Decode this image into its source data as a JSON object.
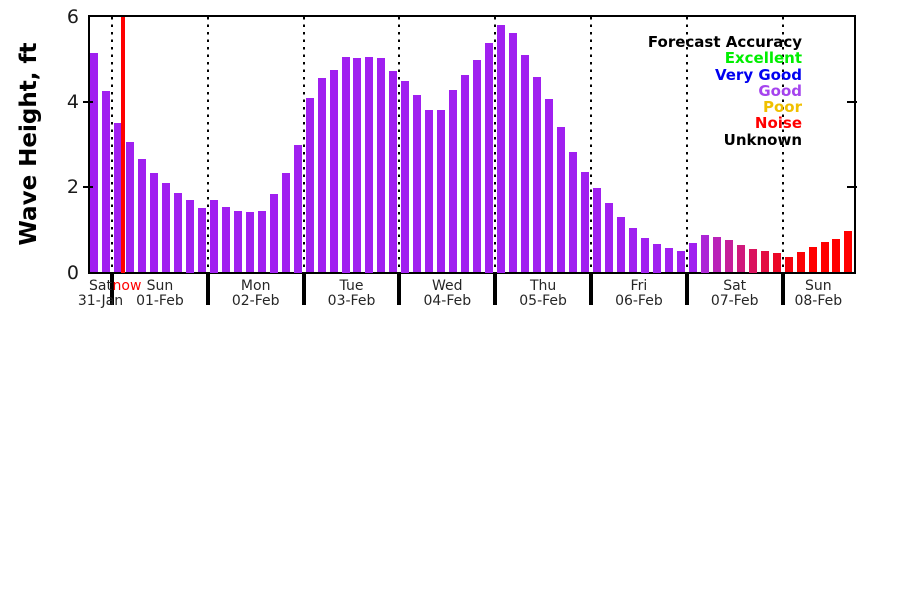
{
  "chart_data": {
    "type": "bar",
    "title": "",
    "ylabel": "Wave Height, ft",
    "ylim": [
      0,
      6
    ],
    "yticks": [
      0,
      2,
      4,
      6
    ],
    "grid": "dotted vertical lines at each day boundary",
    "default_bar_color": "#a020f0",
    "now_label": "now",
    "now_color": "#ff0000",
    "days": [
      {
        "day": "Sat",
        "date": "31-Jan",
        "values": [
          5.15,
          4.25
        ]
      },
      {
        "day": "Sun",
        "date": "01-Feb",
        "values": [
          3.5,
          3.05,
          2.65,
          2.33,
          2.1,
          1.87,
          1.7,
          1.52
        ]
      },
      {
        "day": "Mon",
        "date": "02-Feb",
        "values": [
          1.7,
          1.54,
          1.45,
          1.42,
          1.45,
          1.84,
          2.34,
          3.0
        ]
      },
      {
        "day": "Tue",
        "date": "03-Feb",
        "values": [
          4.1,
          4.55,
          4.75,
          5.05,
          5.02,
          5.05,
          5.02,
          4.72
        ]
      },
      {
        "day": "Wed",
        "date": "04-Feb",
        "values": [
          4.5,
          4.15,
          3.8,
          3.8,
          4.27,
          4.62,
          4.97,
          5.38
        ]
      },
      {
        "day": "Thu",
        "date": "05-Feb",
        "values": [
          5.8,
          5.62,
          5.1,
          4.58,
          4.07,
          3.42,
          2.83,
          2.35
        ]
      },
      {
        "day": "Fri",
        "date": "06-Feb",
        "values": [
          1.97,
          1.62,
          1.31,
          1.04,
          0.82,
          0.68,
          0.57,
          0.51
        ]
      },
      {
        "day": "Sat",
        "date": "07-Feb",
        "values": [
          0.7,
          0.88,
          0.83,
          0.76,
          0.64,
          0.55,
          0.5,
          0.46
        ],
        "colors": [
          "#a020f0",
          "#ac25d6",
          "#b922b8",
          "#c61e9a",
          "#d0197c",
          "#da135e",
          "#e30d42",
          "#eb0727"
        ]
      },
      {
        "day": "Sun",
        "date": "08-Feb",
        "values": [
          0.37,
          0.49,
          0.6,
          0.71,
          0.79,
          0.97
        ],
        "colors": [
          "#f40410",
          "#fb0206",
          "#ff0000",
          "#ff0000",
          "#ff0000",
          "#ff0000"
        ]
      }
    ],
    "legend": {
      "title": "Forecast Accuracy",
      "position": "top-right",
      "items": [
        {
          "label": "Excellent",
          "color": "#00ee00"
        },
        {
          "label": "Very Good",
          "color": "#0000f0"
        },
        {
          "label": "Good",
          "color": "#a544ee"
        },
        {
          "label": "Poor",
          "color": "#f0c000"
        },
        {
          "label": "Noise",
          "color": "#ff0000"
        },
        {
          "label": "Unknown",
          "color": "#000000"
        }
      ]
    }
  }
}
